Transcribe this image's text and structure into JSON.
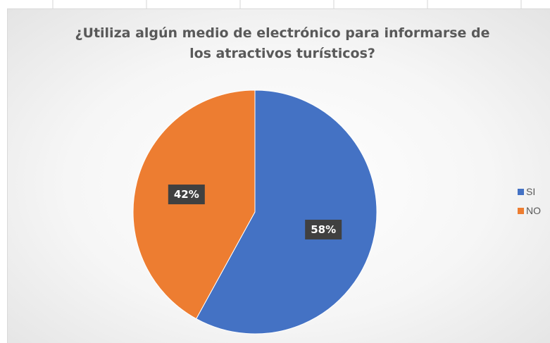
{
  "chart_data": {
    "type": "pie",
    "title": "¿Utiliza algún medio de electrónico para informarse de los atractivos turísticos?",
    "title_lines": [
      "¿Utiliza algún medio de electrónico para informarse de",
      "los atractivos turísticos?"
    ],
    "categories": [
      "SI",
      "NO"
    ],
    "values": [
      58,
      42
    ],
    "data_labels": [
      "58%",
      "42%"
    ],
    "colors": [
      "#4472c4",
      "#ed7d31"
    ],
    "start_angle": "12 o'clock",
    "direction": "clockwise",
    "legend_position": "right"
  }
}
